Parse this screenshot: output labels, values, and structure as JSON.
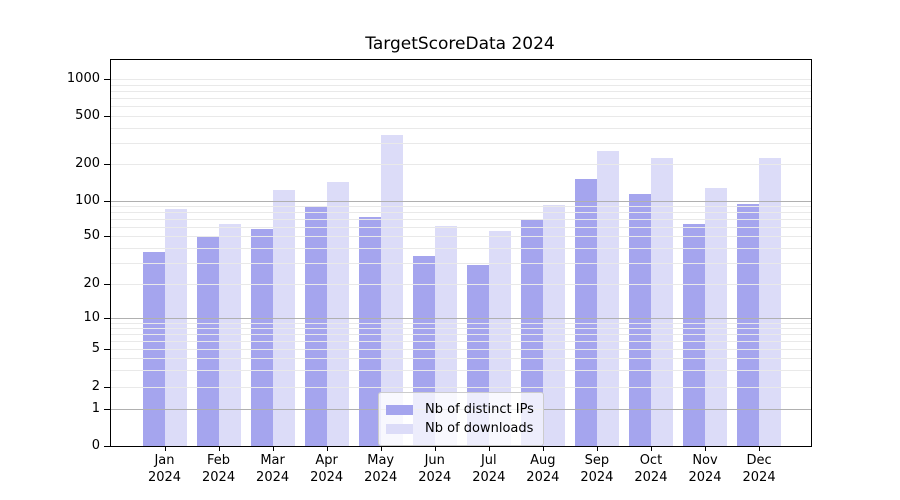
{
  "chart_data": {
    "type": "bar",
    "title": "TargetScoreData 2024",
    "categories": [
      "Jan 2024",
      "Feb 2024",
      "Mar 2024",
      "Apr 2024",
      "May 2024",
      "Jun 2024",
      "Jul 2024",
      "Aug 2024",
      "Sep 2024",
      "Oct 2024",
      "Nov 2024",
      "Dec 2024"
    ],
    "series": [
      {
        "name": "Nb of distinct IPs",
        "color": "#a5a5ee",
        "values": [
          37,
          50,
          58,
          90,
          73,
          34,
          29,
          68,
          150,
          115,
          63,
          94
        ]
      },
      {
        "name": "Nb of downloads",
        "color": "#dcdcf8",
        "values": [
          85,
          63,
          123,
          143,
          350,
          61,
          55,
          92,
          258,
          225,
          128,
          224
        ]
      }
    ],
    "xlabel": "",
    "ylabel": "",
    "yscale": "symlog",
    "ylim": [
      0,
      1000
    ],
    "yticks": [
      0,
      1,
      2,
      5,
      10,
      20,
      50,
      100,
      200,
      500,
      1000
    ],
    "major_gridline_values": [
      1,
      10,
      100
    ],
    "grid": true,
    "legend_position": "lower center"
  },
  "colors": {
    "major_grid": "#b0b0b0",
    "minor_grid": "#e9e9e9",
    "spine": "#000000",
    "text": "#000000"
  }
}
